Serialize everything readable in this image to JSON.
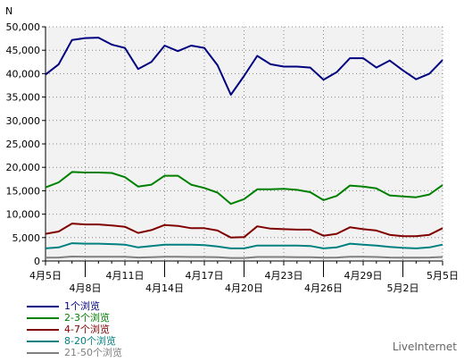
{
  "chart_data": {
    "type": "line",
    "ylabel": "N",
    "ylim": [
      0,
      50000
    ],
    "y_ticks": [
      0,
      5000,
      10000,
      15000,
      20000,
      25000,
      30000,
      35000,
      40000,
      45000,
      50000
    ],
    "y_tick_labels": [
      "0",
      "5,000",
      "10,000",
      "15,000",
      "20,000",
      "25,000",
      "30,000",
      "35,000",
      "40,000",
      "45,000",
      "50,000"
    ],
    "x_tick_labels": [
      {
        "day": 0,
        "label": "4月5日",
        "row": 1
      },
      {
        "day": 3,
        "label": "4月8日",
        "row": 2
      },
      {
        "day": 6,
        "label": "4月11日",
        "row": 1
      },
      {
        "day": 9,
        "label": "4月14日",
        "row": 2
      },
      {
        "day": 12,
        "label": "4月17日",
        "row": 1
      },
      {
        "day": 15,
        "label": "4月20日",
        "row": 2
      },
      {
        "day": 18,
        "label": "4月23日",
        "row": 1
      },
      {
        "day": 21,
        "label": "4月26日",
        "row": 2
      },
      {
        "day": 24,
        "label": "4月29日",
        "row": 1
      },
      {
        "day": 27,
        "label": "5月2日",
        "row": 2
      },
      {
        "day": 30,
        "label": "5月5日",
        "row": 1
      }
    ],
    "x": [
      "4月5日",
      "4月6日",
      "4月7日",
      "4月8日",
      "4月9日",
      "4月10日",
      "4月11日",
      "4月12日",
      "4月13日",
      "4月14日",
      "4月15日",
      "4月16日",
      "4月17日",
      "4月18日",
      "4月19日",
      "4月20日",
      "4月21日",
      "4月22日",
      "4月23日",
      "4月24日",
      "4月25日",
      "4月26日",
      "4月27日",
      "4月28日",
      "4月29日",
      "4月30日",
      "5月1日",
      "5月2日",
      "5月3日",
      "5月4日",
      "5月5日"
    ],
    "grid": true,
    "legend_position": "bottom-left",
    "series": [
      {
        "name": "1个浏览",
        "color": "#000080",
        "values": [
          39800,
          42000,
          47200,
          47600,
          47700,
          46200,
          45500,
          41000,
          42500,
          46000,
          44800,
          46000,
          45500,
          41800,
          35500,
          39500,
          43800,
          42000,
          41500,
          41500,
          41300,
          38700,
          40300,
          43300,
          43300,
          41300,
          42800,
          40700,
          38800,
          40000,
          42900
        ]
      },
      {
        "name": "2-3个浏览",
        "color": "#008000",
        "values": [
          15700,
          16800,
          19000,
          18900,
          18900,
          18800,
          17900,
          15900,
          16300,
          18200,
          18200,
          16300,
          15600,
          14600,
          12200,
          13200,
          15300,
          15300,
          15400,
          15200,
          14700,
          13000,
          13900,
          16100,
          15900,
          15500,
          14000,
          13800,
          13600,
          14200,
          16200
        ]
      },
      {
        "name": "4-7个浏览",
        "color": "#800000",
        "values": [
          5800,
          6300,
          8000,
          7800,
          7800,
          7600,
          7300,
          6000,
          6600,
          7700,
          7500,
          7000,
          7000,
          6500,
          5000,
          5100,
          7400,
          6900,
          6800,
          6700,
          6700,
          5400,
          5800,
          7200,
          6800,
          6500,
          5600,
          5300,
          5300,
          5600,
          7000
        ]
      },
      {
        "name": "8-20个浏览",
        "color": "#008080",
        "values": [
          2700,
          2900,
          3800,
          3700,
          3700,
          3600,
          3500,
          2900,
          3200,
          3500,
          3500,
          3500,
          3400,
          3100,
          2700,
          2700,
          3300,
          3300,
          3300,
          3300,
          3200,
          2700,
          2900,
          3700,
          3500,
          3300,
          3000,
          2800,
          2700,
          2900,
          3500
        ]
      },
      {
        "name": "21-50个浏览",
        "color": "#808080",
        "values": [
          700,
          750,
          950,
          900,
          900,
          900,
          900,
          750,
          800,
          900,
          900,
          850,
          850,
          800,
          650,
          650,
          850,
          850,
          850,
          800,
          800,
          700,
          750,
          900,
          900,
          850,
          750,
          700,
          700,
          750,
          850
        ]
      }
    ]
  },
  "branding": {
    "text": "LiveInternet"
  }
}
